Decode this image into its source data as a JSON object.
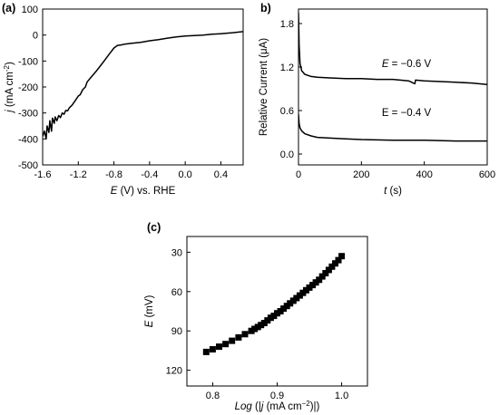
{
  "chart_data": [
    {
      "type": "line",
      "panel_label": "(a)",
      "xlabel": {
        "italic": "E",
        "rest": " (V) vs. RHE"
      },
      "ylabel": {
        "italic": "j",
        "rest": " (mA cm",
        "sup": "-2",
        "close": ")"
      },
      "xlim": [
        -1.6,
        0.65
      ],
      "ylim": [
        -500,
        100
      ],
      "xticks": [
        -1.6,
        -1.2,
        -0.8,
        -0.4,
        0.0,
        0.4
      ],
      "xtick_labels": [
        "-1.6",
        "-1.2",
        "-0.8",
        "-0.4",
        "0.0",
        "0.4"
      ],
      "yticks": [
        100,
        0,
        -100,
        -200,
        -300,
        -400,
        -500
      ],
      "ytick_labels": [
        "100",
        "0",
        "-100",
        "-200",
        "-300",
        "-400",
        "-500"
      ],
      "series": [
        {
          "x": [
            -1.6,
            -1.58,
            -1.56,
            -1.55,
            -1.53,
            -1.52,
            -1.5,
            -1.49,
            -1.47,
            -1.46,
            -1.44,
            -1.42,
            -1.4,
            -1.38,
            -1.36,
            -1.34,
            -1.32,
            -1.3,
            -1.27,
            -1.24,
            -1.2,
            -1.18,
            -1.15,
            -1.12,
            -1.1,
            -1.05,
            -1.0,
            -0.95,
            -0.9,
            -0.85,
            -0.8,
            -0.76,
            -0.72,
            -0.68,
            -0.6,
            -0.5,
            -0.4,
            -0.3,
            -0.2,
            -0.1,
            0.0,
            0.1,
            0.2,
            0.3,
            0.4,
            0.5,
            0.65
          ],
          "y": [
            -390,
            -370,
            -400,
            -350,
            -375,
            -330,
            -370,
            -320,
            -340,
            -315,
            -330,
            -310,
            -318,
            -300,
            -305,
            -290,
            -292,
            -280,
            -270,
            -255,
            -235,
            -230,
            -210,
            -200,
            -180,
            -160,
            -140,
            -118,
            -95,
            -72,
            -50,
            -40,
            -38,
            -35,
            -32,
            -28,
            -22,
            -18,
            -12,
            -7,
            -4,
            -2,
            0,
            3,
            5,
            8,
            13
          ]
        }
      ]
    },
    {
      "type": "line",
      "panel_label": "b)",
      "xlabel": {
        "italic": "t",
        "rest": " (s)"
      },
      "ylabel": {
        "text": "Relative Current (μA)"
      },
      "xlim": [
        0,
        600
      ],
      "ylim": [
        -0.15,
        2.0
      ],
      "xticks": [
        0,
        200,
        400,
        600
      ],
      "xtick_labels": [
        "0",
        "200",
        "400",
        "600"
      ],
      "yticks": [
        0.0,
        0.6,
        1.2,
        1.8
      ],
      "ytick_labels": [
        "0.0",
        "0.6",
        "1.2",
        "1.8"
      ],
      "series": [
        {
          "annotation": {
            "italic": "E",
            "rest": " = −0.6 V"
          },
          "x": [
            0,
            2,
            5,
            10,
            20,
            40,
            60,
            100,
            150,
            200,
            250,
            300,
            350,
            370,
            372,
            400,
            450,
            500,
            550,
            600
          ],
          "y": [
            1.95,
            1.5,
            1.25,
            1.15,
            1.1,
            1.07,
            1.06,
            1.05,
            1.04,
            1.04,
            1.03,
            1.03,
            1.01,
            0.97,
            1.02,
            1.01,
            1.0,
            0.99,
            0.98,
            0.96
          ]
        },
        {
          "annotation": {
            "text": "E = −0.4 V"
          },
          "x": [
            0,
            2,
            5,
            10,
            20,
            40,
            60,
            100,
            150,
            200,
            300,
            400,
            500,
            600
          ],
          "y": [
            0.55,
            0.42,
            0.36,
            0.32,
            0.28,
            0.25,
            0.23,
            0.22,
            0.21,
            0.2,
            0.19,
            0.19,
            0.18,
            0.18
          ]
        }
      ]
    },
    {
      "type": "scatter",
      "panel_label": "(c)",
      "xlabel": {
        "italic": "Log",
        "rest": " (|",
        "italic2": "j",
        "rest2": " (mA cm",
        "sup": "−2",
        "close": ")|)"
      },
      "ylabel": {
        "italic": "E",
        "rest": " (mV)"
      },
      "xlim": [
        0.76,
        1.04
      ],
      "ylim": [
        132,
        18
      ],
      "y_inverted": true,
      "xticks": [
        0.8,
        0.9,
        1.0
      ],
      "xtick_labels": [
        "0.8",
        "0.9",
        "1.0"
      ],
      "yticks": [
        30,
        60,
        90,
        120
      ],
      "ytick_labels": [
        "30",
        "60",
        "90",
        "120"
      ],
      "series": [
        {
          "x": [
            0.79,
            0.8,
            0.81,
            0.82,
            0.83,
            0.84,
            0.85,
            0.86,
            0.865,
            0.87,
            0.875,
            0.88,
            0.885,
            0.89,
            0.895,
            0.9,
            0.905,
            0.91,
            0.915,
            0.92,
            0.925,
            0.93,
            0.935,
            0.94,
            0.945,
            0.95,
            0.955,
            0.96,
            0.965,
            0.97,
            0.975,
            0.98,
            0.985,
            0.99,
            0.995,
            1.0
          ],
          "y": [
            106,
            104,
            102,
            100,
            97.5,
            95,
            92.5,
            90,
            88.5,
            87,
            85.5,
            84,
            82,
            80,
            78.5,
            76.5,
            75,
            73,
            71,
            69,
            67,
            65,
            63,
            61,
            59,
            57,
            55,
            53,
            51,
            48.5,
            46,
            43.5,
            41,
            38.5,
            36,
            33
          ]
        }
      ]
    }
  ]
}
